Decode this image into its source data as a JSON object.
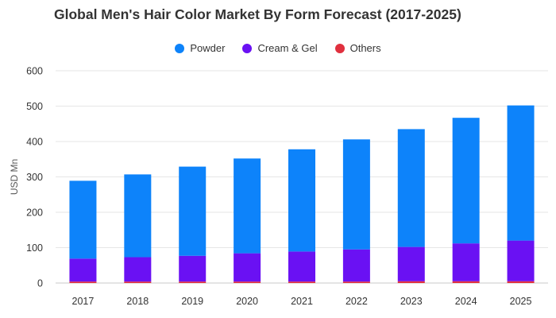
{
  "chart_data": {
    "type": "bar",
    "stacked": true,
    "title": "Global Men's Hair Color Market By Form Forecast (2017-2025)",
    "ylabel": "USD Mn",
    "xlabel": "",
    "categories": [
      "2017",
      "2018",
      "2019",
      "2020",
      "2021",
      "2022",
      "2023",
      "2024",
      "2025"
    ],
    "ylim": [
      0,
      600
    ],
    "yticks": [
      0,
      100,
      200,
      300,
      400,
      500,
      600
    ],
    "grid": true,
    "legend_position": "top-center",
    "series": [
      {
        "name": "Others",
        "color": "#e0303e",
        "values": [
          4,
          4,
          4,
          4,
          4,
          4,
          5,
          5,
          5
        ]
      },
      {
        "name": "Cream & Gel",
        "color": "#6a11f3",
        "values": [
          65,
          69,
          73,
          80,
          85,
          91,
          97,
          107,
          115
        ]
      },
      {
        "name": "Powder",
        "color": "#0d83fa",
        "values": [
          220,
          234,
          252,
          268,
          289,
          311,
          333,
          355,
          382
        ]
      }
    ],
    "legend_order": [
      "Powder",
      "Cream & Gel",
      "Others"
    ]
  }
}
